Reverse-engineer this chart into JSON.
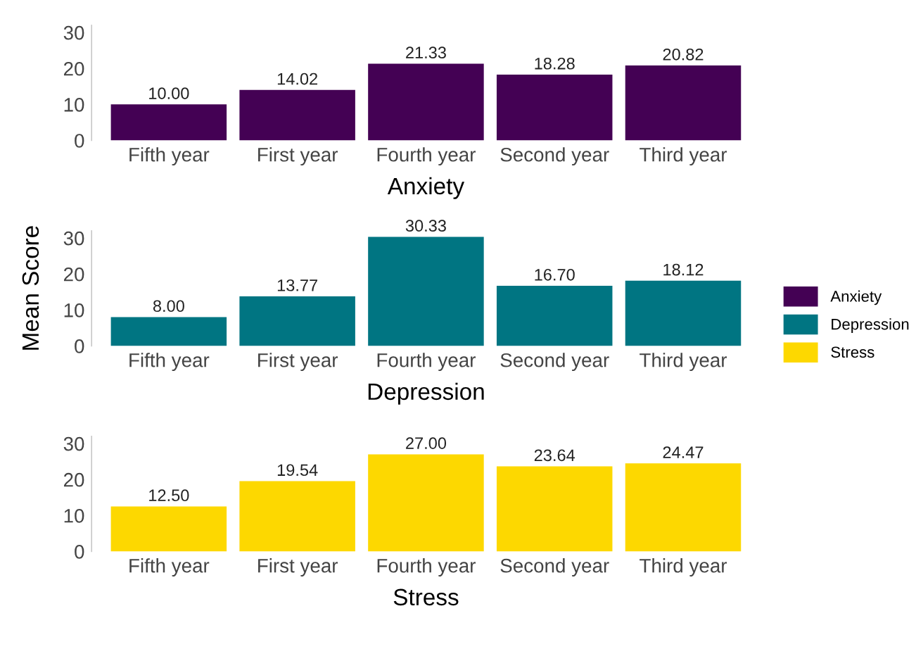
{
  "chart_data": [
    {
      "type": "bar",
      "xlabel": "Anxiety",
      "categories": [
        "Fifth year",
        "First year",
        "Fourth year",
        "Second year",
        "Third year"
      ],
      "series": [
        {
          "name": "Anxiety",
          "color": "#440154",
          "values": [
            10.0,
            14.02,
            21.33,
            18.28,
            20.82
          ],
          "value_labels": [
            "10.00",
            "14.02",
            "21.33",
            "18.28",
            "20.82"
          ]
        }
      ],
      "ylim": [
        0,
        32
      ],
      "yticks": [
        0,
        10,
        20,
        30
      ],
      "legend": "right"
    },
    {
      "type": "bar",
      "xlabel": "Depression",
      "ylabel": "Mean Score",
      "categories": [
        "Fifth year",
        "First year",
        "Fourth year",
        "Second year",
        "Third year"
      ],
      "series": [
        {
          "name": "Depression",
          "color": "#007582",
          "values": [
            8.0,
            13.77,
            30.33,
            16.7,
            18.12
          ],
          "value_labels": [
            "8.00",
            "13.77",
            "30.33",
            "16.70",
            "18.12"
          ]
        }
      ],
      "ylim": [
        0,
        32
      ],
      "yticks": [
        0,
        10,
        20,
        30
      ],
      "legend": "right"
    },
    {
      "type": "bar",
      "xlabel": "Stress",
      "categories": [
        "Fifth year",
        "First year",
        "Fourth year",
        "Second year",
        "Third year"
      ],
      "series": [
        {
          "name": "Stress",
          "color": "#fdd800",
          "values": [
            12.5,
            19.54,
            27.0,
            23.64,
            24.47
          ],
          "value_labels": [
            "12.50",
            "19.54",
            "27.00",
            "23.64",
            "24.47"
          ]
        }
      ],
      "ylim": [
        0,
        32
      ],
      "yticks": [
        0,
        10,
        20,
        30
      ],
      "legend": "right"
    }
  ]
}
